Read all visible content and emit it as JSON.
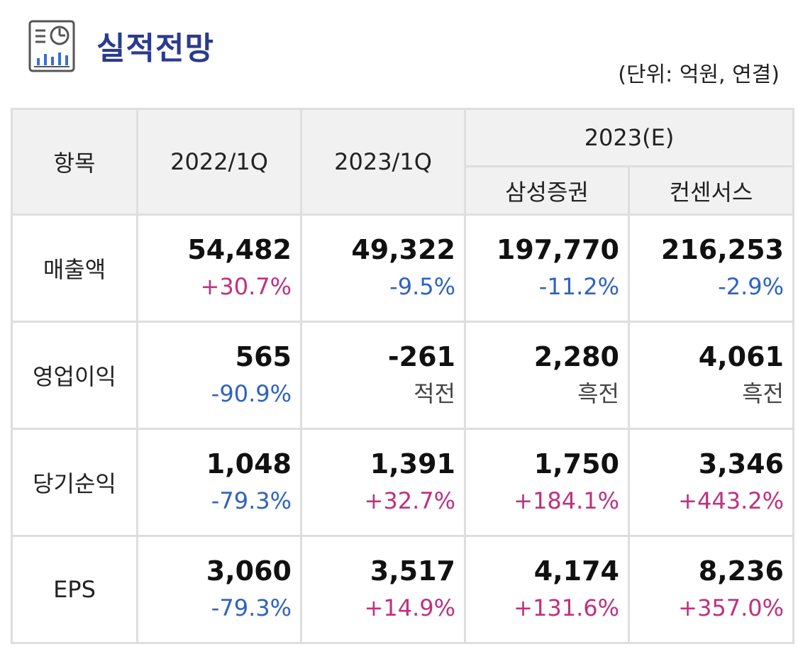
{
  "header": {
    "title": "실적전망",
    "unit": "(단위: 억원, 연결)",
    "icon": "report-chart-icon"
  },
  "table": {
    "col_item": "항목",
    "col_2022": "2022/1Q",
    "col_2023": "2023/1Q",
    "col_est": "2023(E)",
    "col_samsung": "삼성증권",
    "col_consensus": "컨센서스",
    "rows": [
      {
        "label": "매출액",
        "cells": [
          {
            "value": "54,482",
            "change": "+30.7%",
            "tone": "pos"
          },
          {
            "value": "49,322",
            "change": "-9.5%",
            "tone": "neg"
          },
          {
            "value": "197,770",
            "change": "-11.2%",
            "tone": "neg"
          },
          {
            "value": "216,253",
            "change": "-2.9%",
            "tone": "neg"
          }
        ]
      },
      {
        "label": "영업이익",
        "cells": [
          {
            "value": "565",
            "change": "-90.9%",
            "tone": "neg"
          },
          {
            "value": "-261",
            "change": "적전",
            "tone": "neu"
          },
          {
            "value": "2,280",
            "change": "흑전",
            "tone": "neu"
          },
          {
            "value": "4,061",
            "change": "흑전",
            "tone": "neu"
          }
        ]
      },
      {
        "label": "당기순익",
        "cells": [
          {
            "value": "1,048",
            "change": "-79.3%",
            "tone": "neg"
          },
          {
            "value": "1,391",
            "change": "+32.7%",
            "tone": "pos"
          },
          {
            "value": "1,750",
            "change": "+184.1%",
            "tone": "pos"
          },
          {
            "value": "3,346",
            "change": "+443.2%",
            "tone": "pos"
          }
        ]
      },
      {
        "label": "EPS",
        "cells": [
          {
            "value": "3,060",
            "change": "-79.3%",
            "tone": "neg"
          },
          {
            "value": "3,517",
            "change": "+14.9%",
            "tone": "pos"
          },
          {
            "value": "4,174",
            "change": "+131.6%",
            "tone": "pos"
          },
          {
            "value": "8,236",
            "change": "+357.0%",
            "tone": "pos"
          }
        ]
      }
    ]
  },
  "colors": {
    "title": "#2a3b8f",
    "positive": "#c0307e",
    "negative": "#2f62c2",
    "neutral": "#444444",
    "header_bg": "#f1f1f1",
    "border": "#dedede"
  }
}
